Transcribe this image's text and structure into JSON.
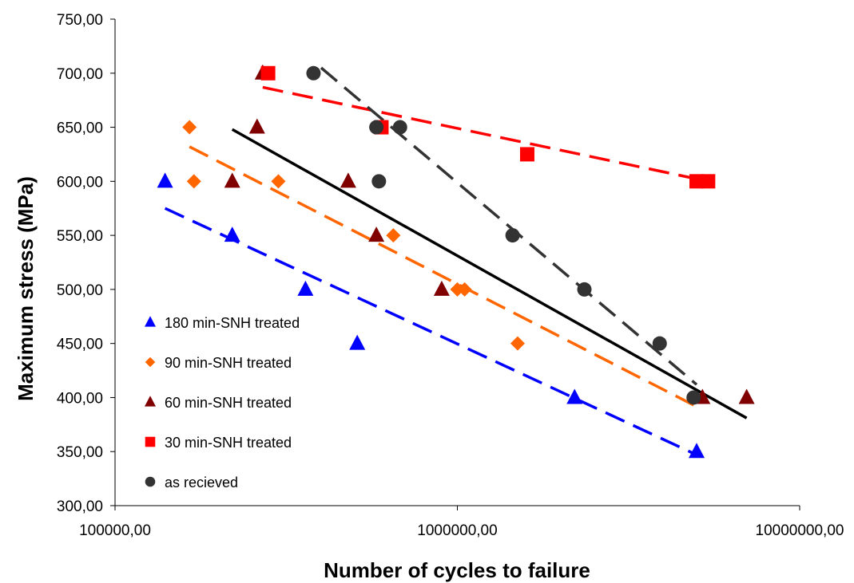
{
  "chart_data": {
    "type": "scatter",
    "x_scale": "log",
    "xlim": [
      100000,
      10000000
    ],
    "ylim": [
      300,
      750
    ],
    "xlabel": "Number of cycles to failure",
    "ylabel": "Maximum stress (MPa)",
    "x_ticks": [
      {
        "value": 100000,
        "label": "100000,00"
      },
      {
        "value": 1000000,
        "label": "1000000,00"
      },
      {
        "value": 10000000,
        "label": "10000000,00"
      }
    ],
    "y_ticks": [
      {
        "value": 300,
        "label": "300,00"
      },
      {
        "value": 350,
        "label": "350,00"
      },
      {
        "value": 400,
        "label": "400,00"
      },
      {
        "value": 450,
        "label": "450,00"
      },
      {
        "value": 500,
        "label": "500,00"
      },
      {
        "value": 550,
        "label": "550,00"
      },
      {
        "value": 600,
        "label": "600,00"
      },
      {
        "value": 650,
        "label": "650,00"
      },
      {
        "value": 700,
        "label": "700,00"
      },
      {
        "value": 750,
        "label": "750,00"
      }
    ],
    "grid": false,
    "legend_position": "bottom-left inside",
    "series": [
      {
        "name": "180 min-SNH treated",
        "marker": "triangle",
        "color": "#0000ff",
        "points": [
          [
            140000,
            600
          ],
          [
            220000,
            550
          ],
          [
            360000,
            500
          ],
          [
            510000,
            450
          ],
          [
            2200000,
            400
          ],
          [
            5000000,
            350
          ]
        ],
        "trendline": {
          "style": "dashed",
          "color": "#0000ff",
          "from": [
            140000,
            575
          ],
          "to": [
            5000000,
            347
          ]
        }
      },
      {
        "name": "90 min-SNH treated",
        "marker": "diamond",
        "color": "#ff6600",
        "points": [
          [
            165000,
            650
          ],
          [
            170000,
            600
          ],
          [
            300000,
            600
          ],
          [
            650000,
            550
          ],
          [
            1000000,
            500
          ],
          [
            1050000,
            500
          ],
          [
            1500000,
            450
          ],
          [
            4900000,
            400
          ]
        ],
        "trendline": {
          "style": "dashed",
          "color": "#ff6600",
          "from": [
            165000,
            632
          ],
          "to": [
            4900000,
            393
          ]
        }
      },
      {
        "name": "60 min-SNH treated",
        "marker": "triangle",
        "color": "#800000",
        "points": [
          [
            270000,
            700
          ],
          [
            260000,
            650
          ],
          [
            220000,
            600
          ],
          [
            480000,
            600
          ],
          [
            580000,
            550
          ],
          [
            900000,
            500
          ],
          [
            5200000,
            400
          ],
          [
            7000000,
            400
          ]
        ],
        "trendline": {
          "style": "solid",
          "color": "#000000",
          "from": [
            220000,
            648
          ],
          "to": [
            7000000,
            381
          ]
        }
      },
      {
        "name": "30 min-SNH treated",
        "marker": "square",
        "color": "#ff0000",
        "points": [
          [
            280000,
            700
          ],
          [
            600000,
            650
          ],
          [
            1600000,
            625
          ],
          [
            5000000,
            600
          ],
          [
            5400000,
            600
          ]
        ],
        "trendline": {
          "style": "dashed",
          "color": "#ff0000",
          "from": [
            270000,
            687
          ],
          "to": [
            5400000,
            600
          ]
        }
      },
      {
        "name": "as recieved",
        "marker": "circle",
        "color": "#333333",
        "points": [
          [
            380000,
            700
          ],
          [
            580000,
            650
          ],
          [
            680000,
            650
          ],
          [
            590000,
            600
          ],
          [
            1450000,
            550
          ],
          [
            2350000,
            500
          ],
          [
            3900000,
            450
          ],
          [
            4900000,
            400
          ]
        ],
        "trendline": {
          "style": "dashed",
          "color": "#333333",
          "from": [
            400000,
            705
          ],
          "to": [
            5000000,
            412
          ]
        }
      }
    ]
  }
}
